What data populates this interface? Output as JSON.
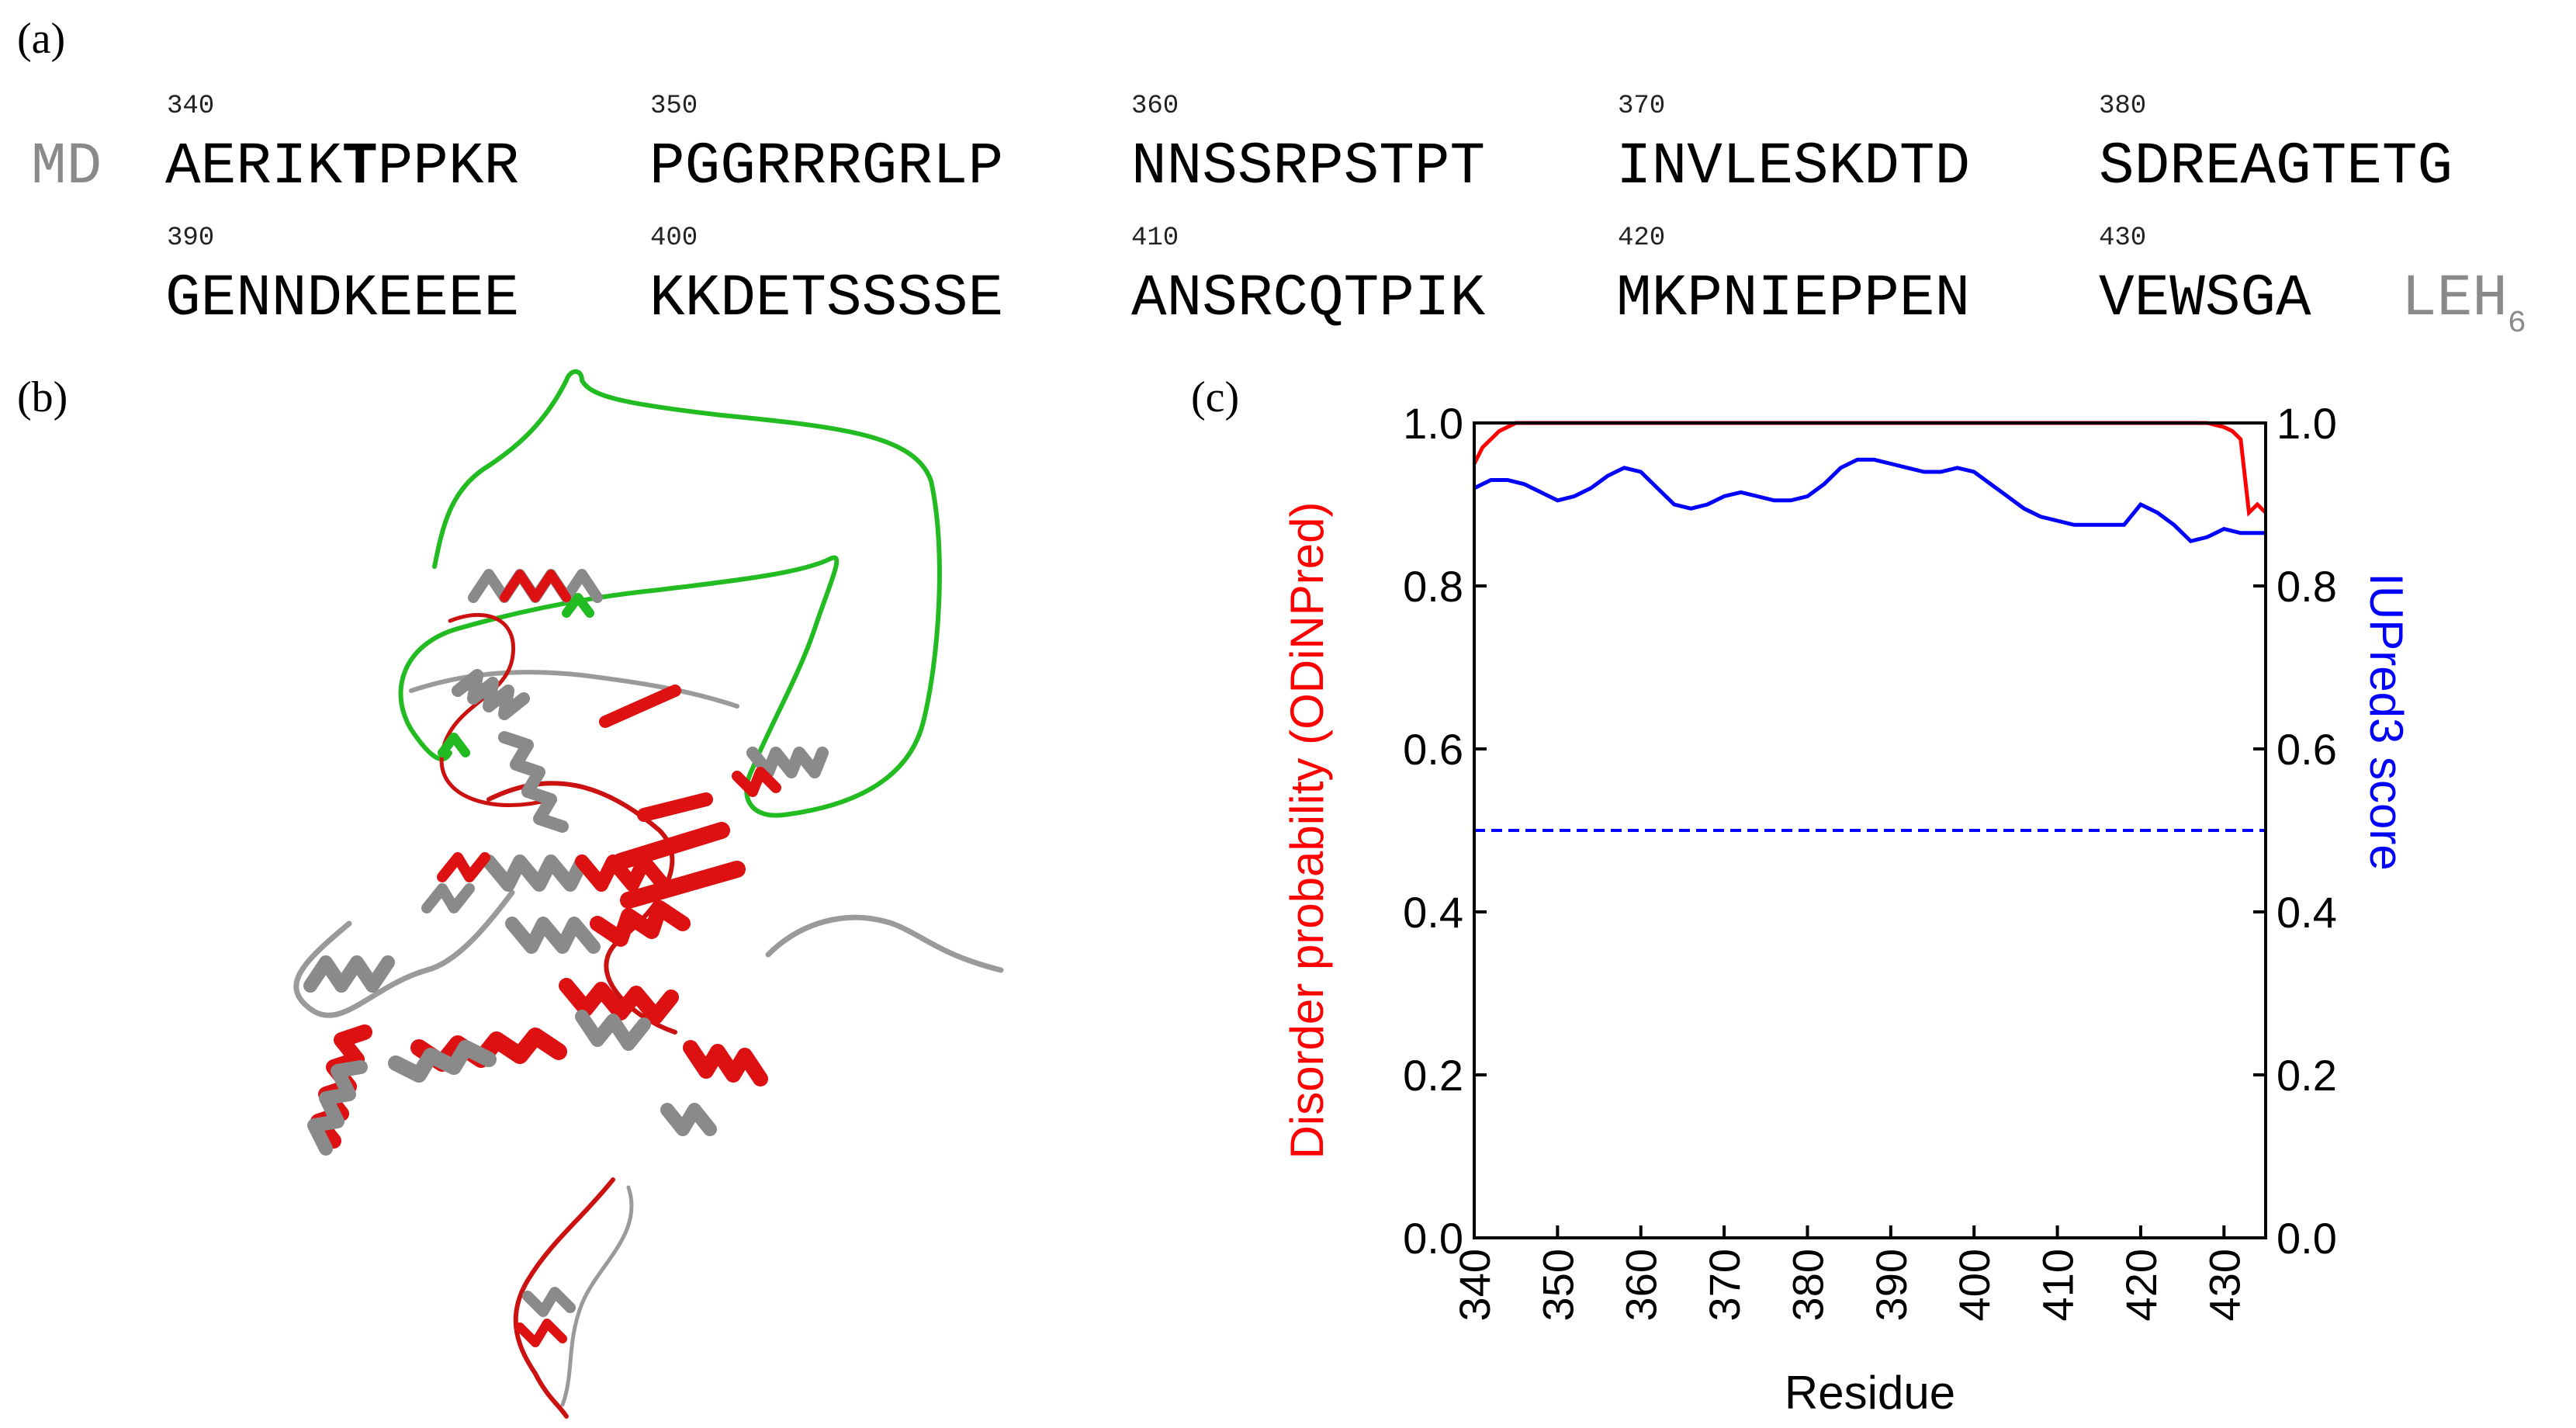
{
  "labels": {
    "a": "(a)",
    "b": "(b)",
    "c": "(c)"
  },
  "sequence": {
    "row1": {
      "prefix": "MD",
      "numbers": [
        "340",
        "350",
        "360",
        "370",
        "380"
      ],
      "blocks": [
        {
          "before": "AERIK",
          "bold": "T",
          "after": "PPKR"
        },
        {
          "before": "PGGRRRGRLP",
          "bold": "",
          "after": ""
        },
        {
          "before": "NNSSRPSTPT",
          "bold": "",
          "after": ""
        },
        {
          "before": "INVLESKDTD",
          "bold": "",
          "after": ""
        },
        {
          "before": "SDREAGTETG",
          "bold": "",
          "after": ""
        }
      ]
    },
    "row2": {
      "numbers": [
        "390",
        "400",
        "410",
        "420",
        "430"
      ],
      "blocks": [
        "GENNDKEEEE",
        "KKDETSSSSE",
        "ANSRCQTPIK",
        "MKPNIEPPEN",
        "VEWSGA"
      ],
      "suffix": "LEH",
      "suffix_sub": "6"
    }
  },
  "chart_data": {
    "type": "line",
    "xlabel": "Residue",
    "ylabel_left": "Disorder probability (ODiNPred)",
    "ylabel_right": "IUPred3 score",
    "xlim": [
      340,
      435
    ],
    "ylim": [
      0.0,
      1.0
    ],
    "x_ticks": [
      "340",
      "350",
      "360",
      "370",
      "380",
      "390",
      "400",
      "410",
      "420",
      "430"
    ],
    "y_ticks": [
      "0.0",
      "0.2",
      "0.4",
      "0.6",
      "0.8",
      "1.0"
    ],
    "threshold": 0.5,
    "series": [
      {
        "axis": "left",
        "color": "#ff0000",
        "x": [
          340,
          341,
          342,
          343,
          345,
          350,
          360,
          370,
          380,
          390,
          400,
          410,
          420,
          428,
          430,
          431,
          432,
          433,
          434,
          435
        ],
        "y": [
          0.95,
          0.97,
          0.98,
          0.99,
          1.0,
          1.0,
          1.0,
          1.0,
          1.0,
          1.0,
          1.0,
          1.0,
          1.0,
          1.0,
          0.995,
          0.99,
          0.98,
          0.89,
          0.9,
          0.89
        ]
      },
      {
        "axis": "right",
        "color": "#0000ff",
        "x": [
          340,
          342,
          344,
          346,
          348,
          350,
          352,
          354,
          356,
          358,
          360,
          362,
          364,
          366,
          368,
          370,
          372,
          374,
          376,
          378,
          380,
          382,
          384,
          386,
          388,
          390,
          392,
          394,
          396,
          398,
          400,
          402,
          404,
          406,
          408,
          410,
          412,
          414,
          416,
          418,
          420,
          422,
          424,
          426,
          428,
          430,
          432,
          435
        ],
        "y": [
          0.92,
          0.93,
          0.93,
          0.925,
          0.915,
          0.905,
          0.91,
          0.92,
          0.935,
          0.945,
          0.94,
          0.92,
          0.9,
          0.895,
          0.9,
          0.91,
          0.915,
          0.91,
          0.905,
          0.905,
          0.91,
          0.925,
          0.945,
          0.955,
          0.955,
          0.95,
          0.945,
          0.94,
          0.94,
          0.945,
          0.94,
          0.925,
          0.91,
          0.895,
          0.885,
          0.88,
          0.875,
          0.875,
          0.875,
          0.875,
          0.9,
          0.89,
          0.875,
          0.855,
          0.86,
          0.87,
          0.865,
          0.865
        ]
      }
    ]
  },
  "colors": {
    "red": "#ff0000",
    "blue": "#0000ff",
    "green": "#22bb22",
    "grey": "#8a8a8a"
  }
}
